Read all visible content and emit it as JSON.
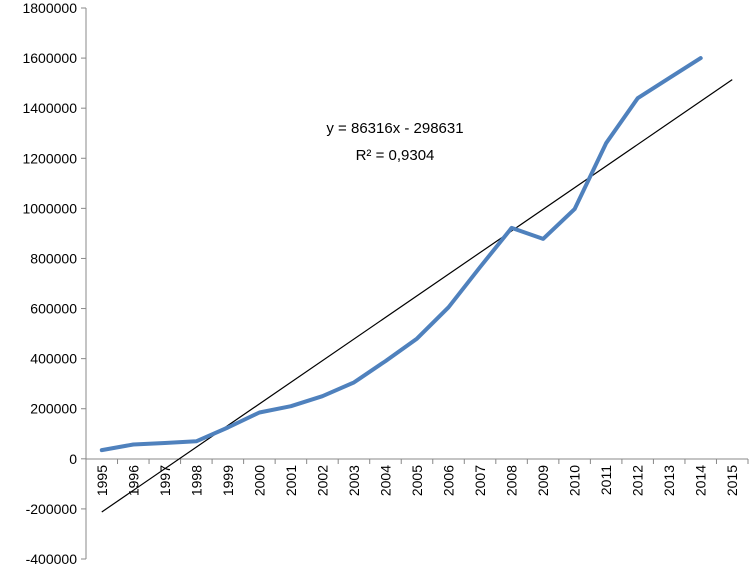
{
  "chart_data": {
    "type": "line",
    "title": "",
    "xlabel": "",
    "ylabel": "",
    "categories": [
      "1995",
      "1996",
      "1997",
      "1998",
      "1999",
      "2000",
      "2001",
      "2002",
      "2003",
      "2004",
      "2005",
      "2006",
      "2007",
      "2008",
      "2009",
      "2010",
      "2011",
      "2012",
      "2013",
      "2014",
      "2015"
    ],
    "series": [
      {
        "values": [
          35000,
          57000,
          63000,
          70000,
          125000,
          185000,
          210000,
          250000,
          305000,
          390000,
          480000,
          605000,
          765000,
          922000,
          878000,
          997000,
          1260000,
          1440000,
          1520000,
          1600000,
          null
        ],
        "color": "#4F81BD"
      }
    ],
    "trendline": {
      "equation": "y = 86316x - 298631",
      "r_squared": "R² = 0,9304",
      "slope": 86316,
      "intercept": -298631,
      "color": "#000000"
    },
    "yticks": [
      "-400000",
      "-200000",
      "0",
      "200000",
      "400000",
      "600000",
      "800000",
      "1000000",
      "1200000",
      "1400000",
      "1600000",
      "1800000"
    ],
    "ylim": [
      -400000,
      1800000
    ],
    "grid": false,
    "legend": "none"
  }
}
